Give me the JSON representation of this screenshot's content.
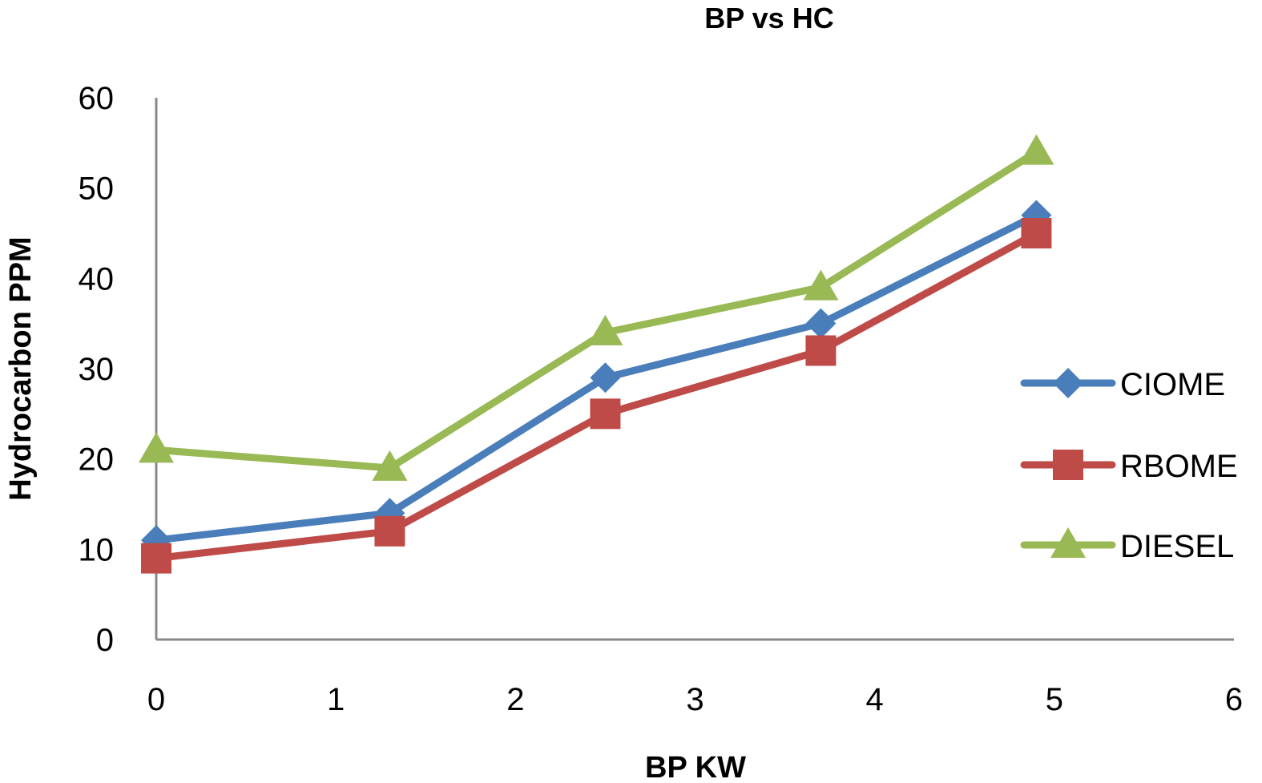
{
  "chart_data": {
    "type": "line",
    "title": "BP  vs HC",
    "xlabel": "BP  KW",
    "ylabel": "Hydrocarbon PPM",
    "xlim": [
      0,
      6
    ],
    "ylim": [
      0,
      60
    ],
    "xticks": [
      0,
      1,
      2,
      3,
      4,
      5,
      6
    ],
    "yticks": [
      0,
      10,
      20,
      30,
      40,
      50,
      60
    ],
    "grid": false,
    "legend_position": "right",
    "x": [
      0,
      1.3,
      2.5,
      3.7,
      4.9
    ],
    "series": [
      {
        "name": "CIOME",
        "values": [
          11,
          14,
          29,
          35,
          47
        ],
        "color": "#4a7ebb",
        "marker": "diamond"
      },
      {
        "name": "RBOME",
        "values": [
          9,
          12,
          25,
          32,
          45
        ],
        "color": "#be4b48",
        "marker": "square"
      },
      {
        "name": "DIESEL",
        "values": [
          21,
          19,
          34,
          39,
          54
        ],
        "color": "#98b954",
        "marker": "triangle"
      }
    ]
  }
}
